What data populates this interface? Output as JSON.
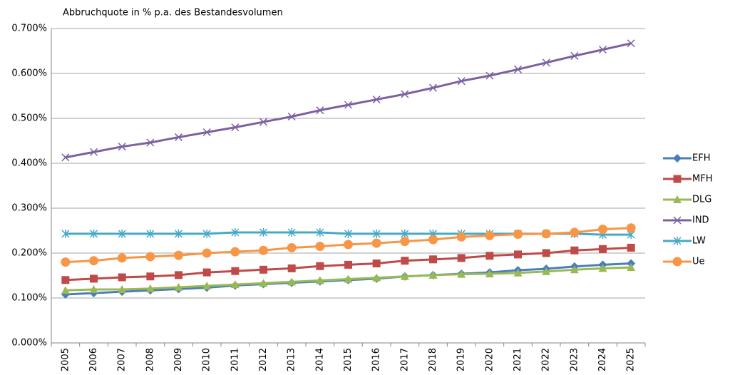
{
  "chart_data": {
    "type": "line",
    "title": "Abbruchquote in % p.a. des Bestandesvolumen",
    "categories": [
      "2005",
      "2006",
      "2007",
      "2008",
      "2009",
      "2010",
      "2011",
      "2012",
      "2013",
      "2014",
      "2015",
      "2016",
      "2017",
      "2018",
      "2019",
      "2020",
      "2021",
      "2022",
      "2023",
      "2024",
      "2025"
    ],
    "ylim": [
      0,
      0.7
    ],
    "yticks": [
      {
        "value": 0,
        "label": "0.000%"
      },
      {
        "value": 0.1,
        "label": "0.100%"
      },
      {
        "value": 0.2,
        "label": "0.200%"
      },
      {
        "value": 0.3,
        "label": "0.300%"
      },
      {
        "value": 0.4,
        "label": "0.400%"
      },
      {
        "value": 0.5,
        "label": "0.500%"
      },
      {
        "value": 0.6,
        "label": "0.600%"
      },
      {
        "value": 0.7,
        "label": "0.700%"
      }
    ],
    "grid": true,
    "legend": "right",
    "series": [
      {
        "name": "EFH",
        "color": "#4a7ebb",
        "marker": "diamond",
        "values": [
          0.108,
          0.111,
          0.114,
          0.117,
          0.12,
          0.123,
          0.128,
          0.131,
          0.134,
          0.137,
          0.14,
          0.143,
          0.148,
          0.151,
          0.154,
          0.157,
          0.162,
          0.165,
          0.17,
          0.174,
          0.177
        ]
      },
      {
        "name": "MFH",
        "color": "#be4b48",
        "marker": "square",
        "values": [
          0.14,
          0.143,
          0.146,
          0.148,
          0.151,
          0.157,
          0.16,
          0.163,
          0.166,
          0.171,
          0.174,
          0.177,
          0.183,
          0.186,
          0.189,
          0.194,
          0.197,
          0.2,
          0.206,
          0.209,
          0.212
        ]
      },
      {
        "name": "DLG",
        "color": "#98b954",
        "marker": "triangle",
        "values": [
          0.117,
          0.119,
          0.119,
          0.121,
          0.124,
          0.127,
          0.13,
          0.133,
          0.136,
          0.139,
          0.142,
          0.145,
          0.148,
          0.151,
          0.153,
          0.154,
          0.156,
          0.159,
          0.163,
          0.166,
          0.168
        ]
      },
      {
        "name": "IND",
        "color": "#7d60a0",
        "marker": "x",
        "values": [
          0.413,
          0.425,
          0.437,
          0.446,
          0.458,
          0.469,
          0.48,
          0.492,
          0.504,
          0.518,
          0.53,
          0.542,
          0.554,
          0.568,
          0.583,
          0.595,
          0.609,
          0.624,
          0.639,
          0.653,
          0.667
        ]
      },
      {
        "name": "LW",
        "color": "#46aac5",
        "marker": "star",
        "values": [
          0.243,
          0.243,
          0.243,
          0.243,
          0.243,
          0.243,
          0.246,
          0.246,
          0.246,
          0.246,
          0.243,
          0.243,
          0.243,
          0.243,
          0.243,
          0.243,
          0.243,
          0.243,
          0.243,
          0.241,
          0.241
        ]
      },
      {
        "name": "Ue",
        "color": "#f79646",
        "marker": "circle",
        "values": [
          0.18,
          0.183,
          0.189,
          0.192,
          0.195,
          0.2,
          0.203,
          0.206,
          0.212,
          0.215,
          0.219,
          0.222,
          0.226,
          0.23,
          0.236,
          0.239,
          0.242,
          0.243,
          0.246,
          0.253,
          0.256
        ]
      }
    ]
  }
}
